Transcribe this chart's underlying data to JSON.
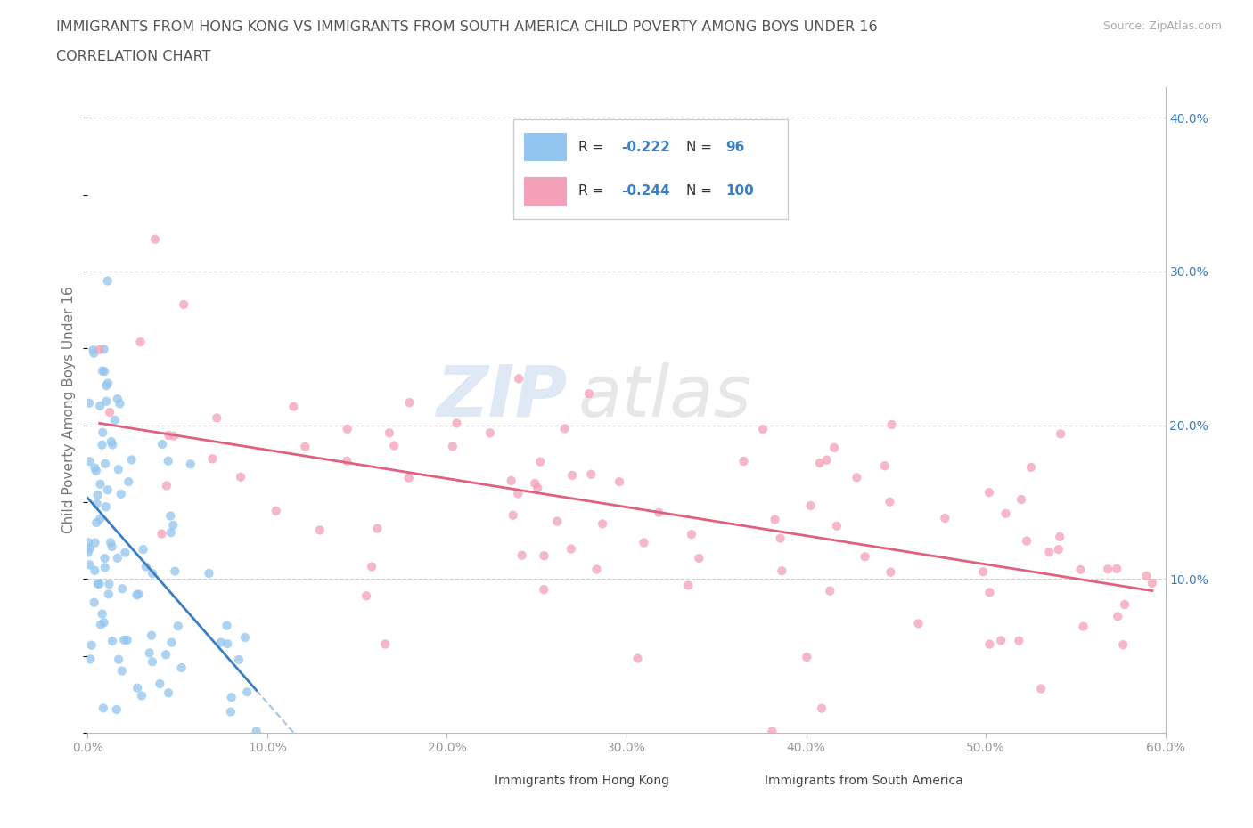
{
  "title_line1": "IMMIGRANTS FROM HONG KONG VS IMMIGRANTS FROM SOUTH AMERICA CHILD POVERTY AMONG BOYS UNDER 16",
  "title_line2": "CORRELATION CHART",
  "source_text": "Source: ZipAtlas.com",
  "ylabel": "Child Poverty Among Boys Under 16",
  "xlim": [
    0.0,
    0.6
  ],
  "ylim": [
    0.0,
    0.42
  ],
  "xticks": [
    0.0,
    0.1,
    0.2,
    0.3,
    0.4,
    0.5,
    0.6
  ],
  "xticklabels": [
    "0.0%",
    "10.0%",
    "20.0%",
    "30.0%",
    "40.0%",
    "50.0%",
    "60.0%"
  ],
  "yticks_right": [
    0.1,
    0.2,
    0.3,
    0.4
  ],
  "ytick_right_labels": [
    "10.0%",
    "20.0%",
    "30.0%",
    "40.0%"
  ],
  "hk_color": "#92c5f0",
  "sa_color": "#f4a0b8",
  "hk_line_color": "#3a7fc1",
  "sa_line_color": "#e06080",
  "hk_R": -0.222,
  "hk_N": 96,
  "sa_R": -0.244,
  "sa_N": 100,
  "watermark_zip": "ZIP",
  "watermark_atlas": "atlas",
  "background_color": "#ffffff",
  "grid_color": "#c8c8c8",
  "title_color": "#666666",
  "legend_label_color": "#3a7fc1",
  "axis_color": "#aaaaaa"
}
